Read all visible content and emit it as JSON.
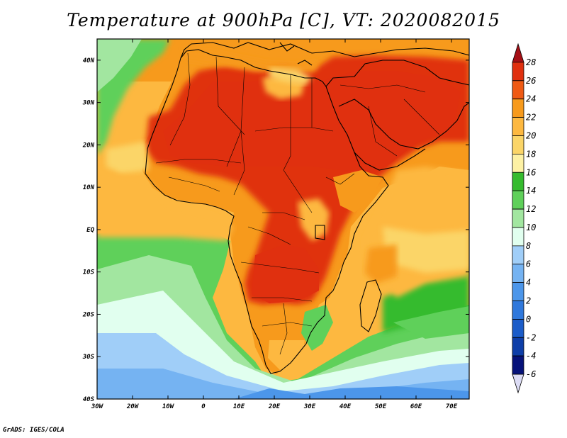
{
  "title": "Temperature at 900hPa [C], VT: 2020082015",
  "credit": "GrADS: IGES/COLA",
  "map": {
    "lon_labels": [
      "30W",
      "20W",
      "10W",
      "0",
      "10E",
      "20E",
      "30E",
      "40E",
      "50E",
      "60E",
      "70E"
    ],
    "lat_labels": [
      "40N",
      "30N",
      "20N",
      "10N",
      "EQ",
      "10S",
      "20S",
      "30S",
      "40S"
    ]
  },
  "colorbar": {
    "labels": [
      "28",
      "26",
      "24",
      "22",
      "20",
      "18",
      "16",
      "14",
      "12",
      "10",
      "8",
      "6",
      "4",
      "2",
      "0",
      "-2",
      "-4",
      "-6"
    ],
    "colors": [
      "#a50f15",
      "#e0300f",
      "#ef5a14",
      "#f79a1c",
      "#fdb840",
      "#fbd568",
      "#fdf1a4",
      "#35bb2e",
      "#5fd05a",
      "#a2e6a0",
      "#e1ffef",
      "#a0cef8",
      "#75b3f2",
      "#4c96ea",
      "#2f78dc",
      "#1b5cc9",
      "#0e3ea8",
      "#06127a",
      "#dcdcf5"
    ]
  },
  "colors": {
    "ocean_warm": "#fbd568",
    "ocean_cool": "#a2e6a0",
    "land_hot": "#e0300f",
    "coast": "#000000"
  }
}
